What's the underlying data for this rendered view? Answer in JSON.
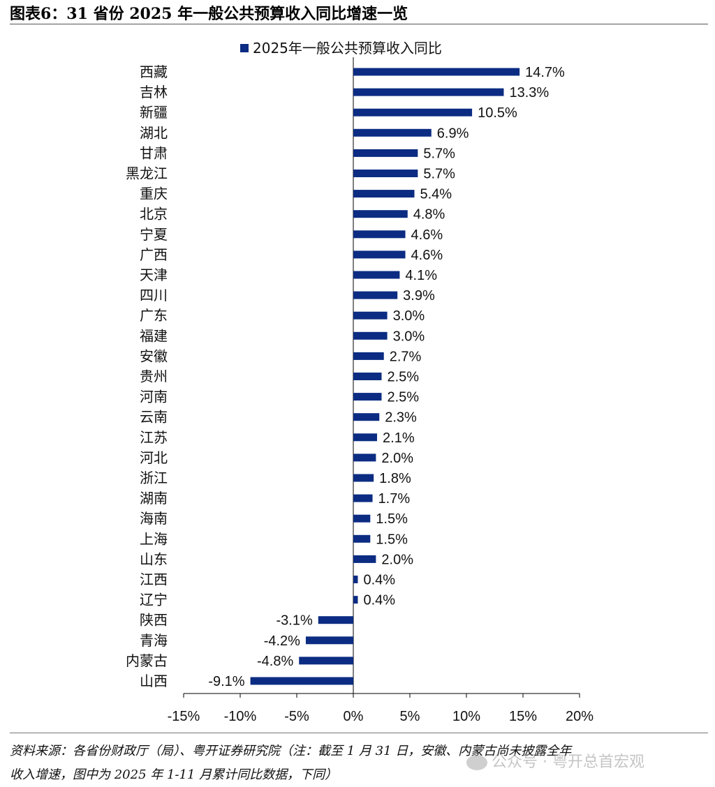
{
  "title": "图表6：31 省份 2025 年一般公共预算收入同比增速一览",
  "footnote": {
    "line1": "资料来源：各省份财政厅（局）、粤开证券研究院（注：截至 1 月 31 日，安徽、内蒙古尚未披露全年",
    "line2": "收入增速，图中为 2025 年 1-11 月累计同比数据，下同）"
  },
  "watermark": "公众号 · 粤开总首宏观",
  "chart_data": {
    "type": "bar",
    "orientation": "horizontal",
    "legend_position": "top-center",
    "bar_color": "#0b2c82",
    "series": [
      {
        "name": "2025年一般公共预算收入同比",
        "values": [
          14.7,
          13.3,
          10.5,
          6.9,
          5.7,
          5.7,
          5.4,
          4.8,
          4.6,
          4.6,
          4.1,
          3.9,
          3.0,
          3.0,
          2.7,
          2.5,
          2.5,
          2.3,
          2.1,
          2.0,
          1.8,
          1.7,
          1.5,
          1.5,
          2.0,
          0.4,
          0.4,
          -3.1,
          -4.2,
          -4.8,
          -9.1
        ],
        "labels": [
          "14.7%",
          "13.3%",
          "10.5%",
          "6.9%",
          "5.7%",
          "5.7%",
          "5.4%",
          "4.8%",
          "4.6%",
          "4.6%",
          "4.1%",
          "3.9%",
          "3.0%",
          "3.0%",
          "2.7%",
          "2.5%",
          "2.5%",
          "2.3%",
          "2.1%",
          "2.0%",
          "1.8%",
          "1.7%",
          "1.5%",
          "1.5%",
          "2.0%",
          "0.4%",
          "0.4%",
          "-3.1%",
          "-4.2%",
          "-4.8%",
          "-9.1%"
        ]
      }
    ],
    "categories": [
      "西藏",
      "吉林",
      "新疆",
      "湖北",
      "甘肃",
      "黑龙江",
      "重庆",
      "北京",
      "宁夏",
      "广西",
      "天津",
      "四川",
      "广东",
      "福建",
      "安徽",
      "贵州",
      "河南",
      "云南",
      "江苏",
      "河北",
      "浙江",
      "湖南",
      "海南",
      "上海",
      "山东",
      "江西",
      "辽宁",
      "陕西",
      "青海",
      "内蒙古",
      "山西"
    ],
    "xlim": [
      -15,
      20
    ],
    "xticks": [
      -15,
      -10,
      -5,
      0,
      5,
      10,
      15,
      20
    ],
    "xtick_labels": [
      "-15%",
      "-10%",
      "-5%",
      "0%",
      "5%",
      "10%",
      "15%",
      "20%"
    ],
    "grid": false
  }
}
